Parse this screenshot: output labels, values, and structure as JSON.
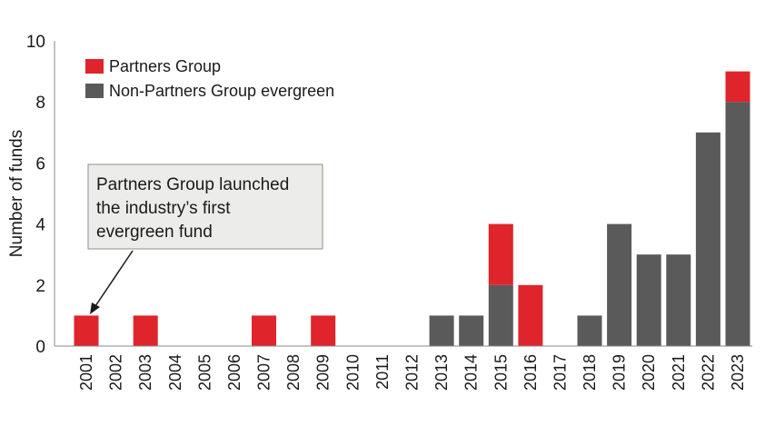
{
  "chart_data": {
    "type": "bar",
    "stacked": true,
    "title": "",
    "xlabel": "",
    "ylabel": "Number of funds",
    "ylim": [
      0,
      10
    ],
    "yticks": [
      "0",
      "2",
      "4",
      "6",
      "8",
      "10"
    ],
    "grid": false,
    "legend_position": "top-left",
    "categories": [
      "2001",
      "2002",
      "2003",
      "2004",
      "2005",
      "2006",
      "2007",
      "2008",
      "2009",
      "2010",
      "2011",
      "2012",
      "2013",
      "2014",
      "2015",
      "2016",
      "2017",
      "2018",
      "2019",
      "2020",
      "2021",
      "2022",
      "2023"
    ],
    "series": [
      {
        "name": "Non-Partners Group evergreen",
        "color": "#5a5a5a",
        "values": [
          0,
          0,
          0,
          0,
          0,
          0,
          0,
          0,
          0,
          0,
          0,
          0,
          1,
          1,
          2,
          0,
          0,
          1,
          4,
          3,
          3,
          7,
          8
        ]
      },
      {
        "name": "Partners Group",
        "color": "#e0242b",
        "values": [
          1,
          0,
          1,
          0,
          0,
          0,
          1,
          0,
          1,
          0,
          0,
          0,
          0,
          0,
          2,
          2,
          0,
          0,
          0,
          0,
          0,
          0,
          1
        ]
      }
    ],
    "annotation": {
      "lines": [
        "Partners Group launched",
        "the industry’s first",
        "evergreen fund"
      ],
      "target_category": "2001"
    }
  }
}
